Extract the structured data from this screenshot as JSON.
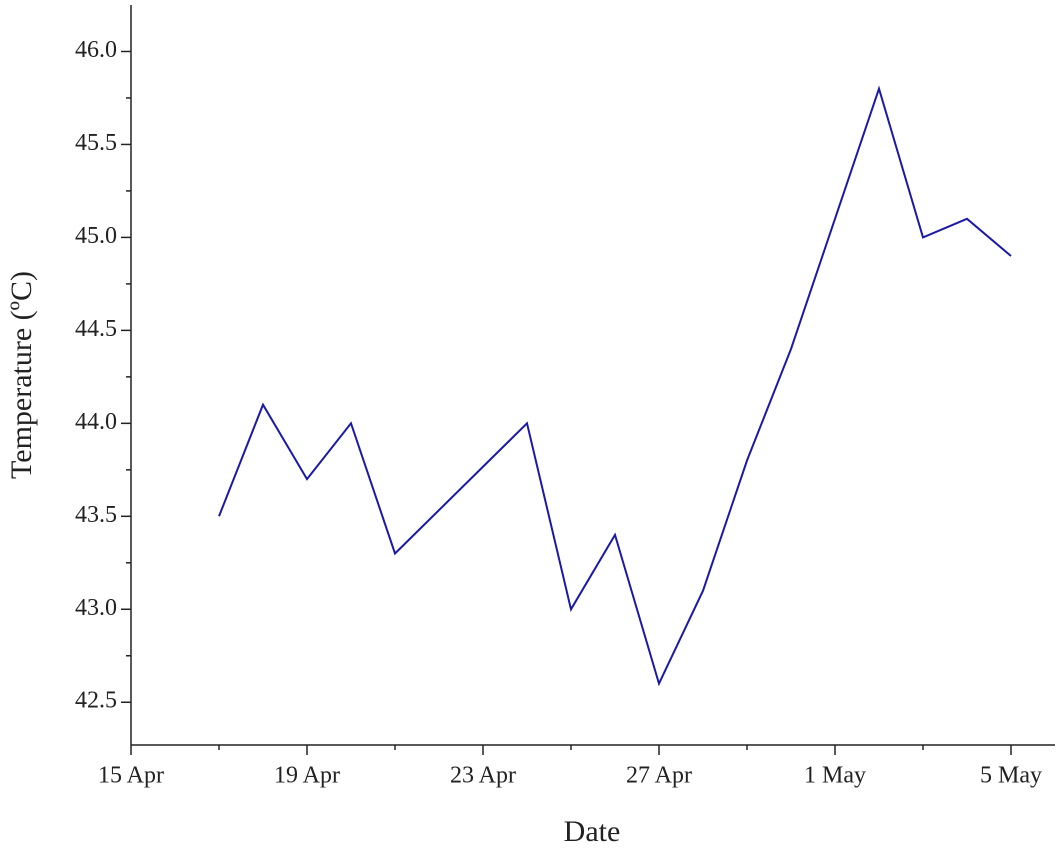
{
  "chart_data": {
    "type": "line",
    "x_label": "Date",
    "y_label": "Temperature (ºC)",
    "x": [
      "17 Apr",
      "18 Apr",
      "19 Apr",
      "20 Apr",
      "21 Apr",
      "24 Apr",
      "25 Apr",
      "26 Apr",
      "27 Apr",
      "28 Apr",
      "29 Apr",
      "30 Apr",
      "1 May",
      "2 May",
      "3 May",
      "4 May",
      "5 May"
    ],
    "series": [
      {
        "name": "Temperature",
        "color": "#1a1aa6",
        "values": [
          43.5,
          44.1,
          43.7,
          44.0,
          43.3,
          44.0,
          43.0,
          43.4,
          42.6,
          43.1,
          43.8,
          44.4,
          45.1,
          45.8,
          45.0,
          45.1,
          44.9
        ]
      }
    ],
    "xlim": [
      "15 Apr",
      "6 May"
    ],
    "xticks": [
      "15 Apr",
      "19 Apr",
      "23 Apr",
      "27 Apr",
      "1 May",
      "5 May"
    ],
    "ylim": [
      42.27,
      46.25
    ],
    "yticks": [
      {
        "value": 42.5,
        "label": "42.5"
      },
      {
        "value": 43,
        "label": "43.0"
      },
      {
        "value": 43.5,
        "label": "43.5"
      },
      {
        "value": 44,
        "label": "44.0"
      },
      {
        "value": 44.5,
        "label": "44.5"
      },
      {
        "value": 45,
        "label": "45.0"
      },
      {
        "value": 45.5,
        "label": "45.5"
      },
      {
        "value": 46,
        "label": "46.0"
      }
    ],
    "grid": false
  }
}
